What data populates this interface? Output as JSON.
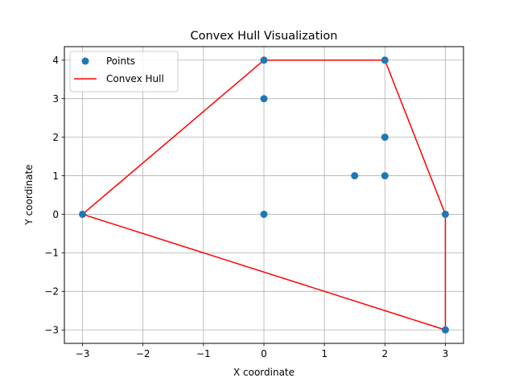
{
  "chart_data": {
    "type": "scatter",
    "title": "Convex Hull Visualization",
    "xlabel": "X coordinate",
    "ylabel": "Y coordinate",
    "xlim": [
      -3.3,
      3.3
    ],
    "ylim": [
      -3.35,
      4.35
    ],
    "xticks": [
      -3,
      -2,
      -1,
      0,
      1,
      2,
      3
    ],
    "yticks": [
      -3,
      -2,
      -1,
      0,
      1,
      2,
      3,
      4
    ],
    "xtick_labels": [
      "−3",
      "−2",
      "−1",
      "0",
      "1",
      "2",
      "3"
    ],
    "ytick_labels": [
      "−3",
      "−2",
      "−1",
      "0",
      "1",
      "2",
      "3",
      "4"
    ],
    "grid": true,
    "legend_position": "top-left",
    "series": [
      {
        "name": "Points",
        "kind": "scatter",
        "color": "#1f77b4",
        "points": [
          [
            0,
            4
          ],
          [
            2,
            4
          ],
          [
            0,
            3
          ],
          [
            2,
            2
          ],
          [
            1.5,
            1
          ],
          [
            2,
            1
          ],
          [
            -3,
            0
          ],
          [
            0,
            0
          ],
          [
            3,
            0
          ],
          [
            3,
            -3
          ]
        ]
      },
      {
        "name": "Convex Hull",
        "kind": "line",
        "color": "#ff0000",
        "points": [
          [
            -3,
            0
          ],
          [
            0,
            4
          ],
          [
            2,
            4
          ],
          [
            3,
            0
          ],
          [
            3,
            -3
          ],
          [
            -3,
            0
          ]
        ]
      }
    ]
  }
}
